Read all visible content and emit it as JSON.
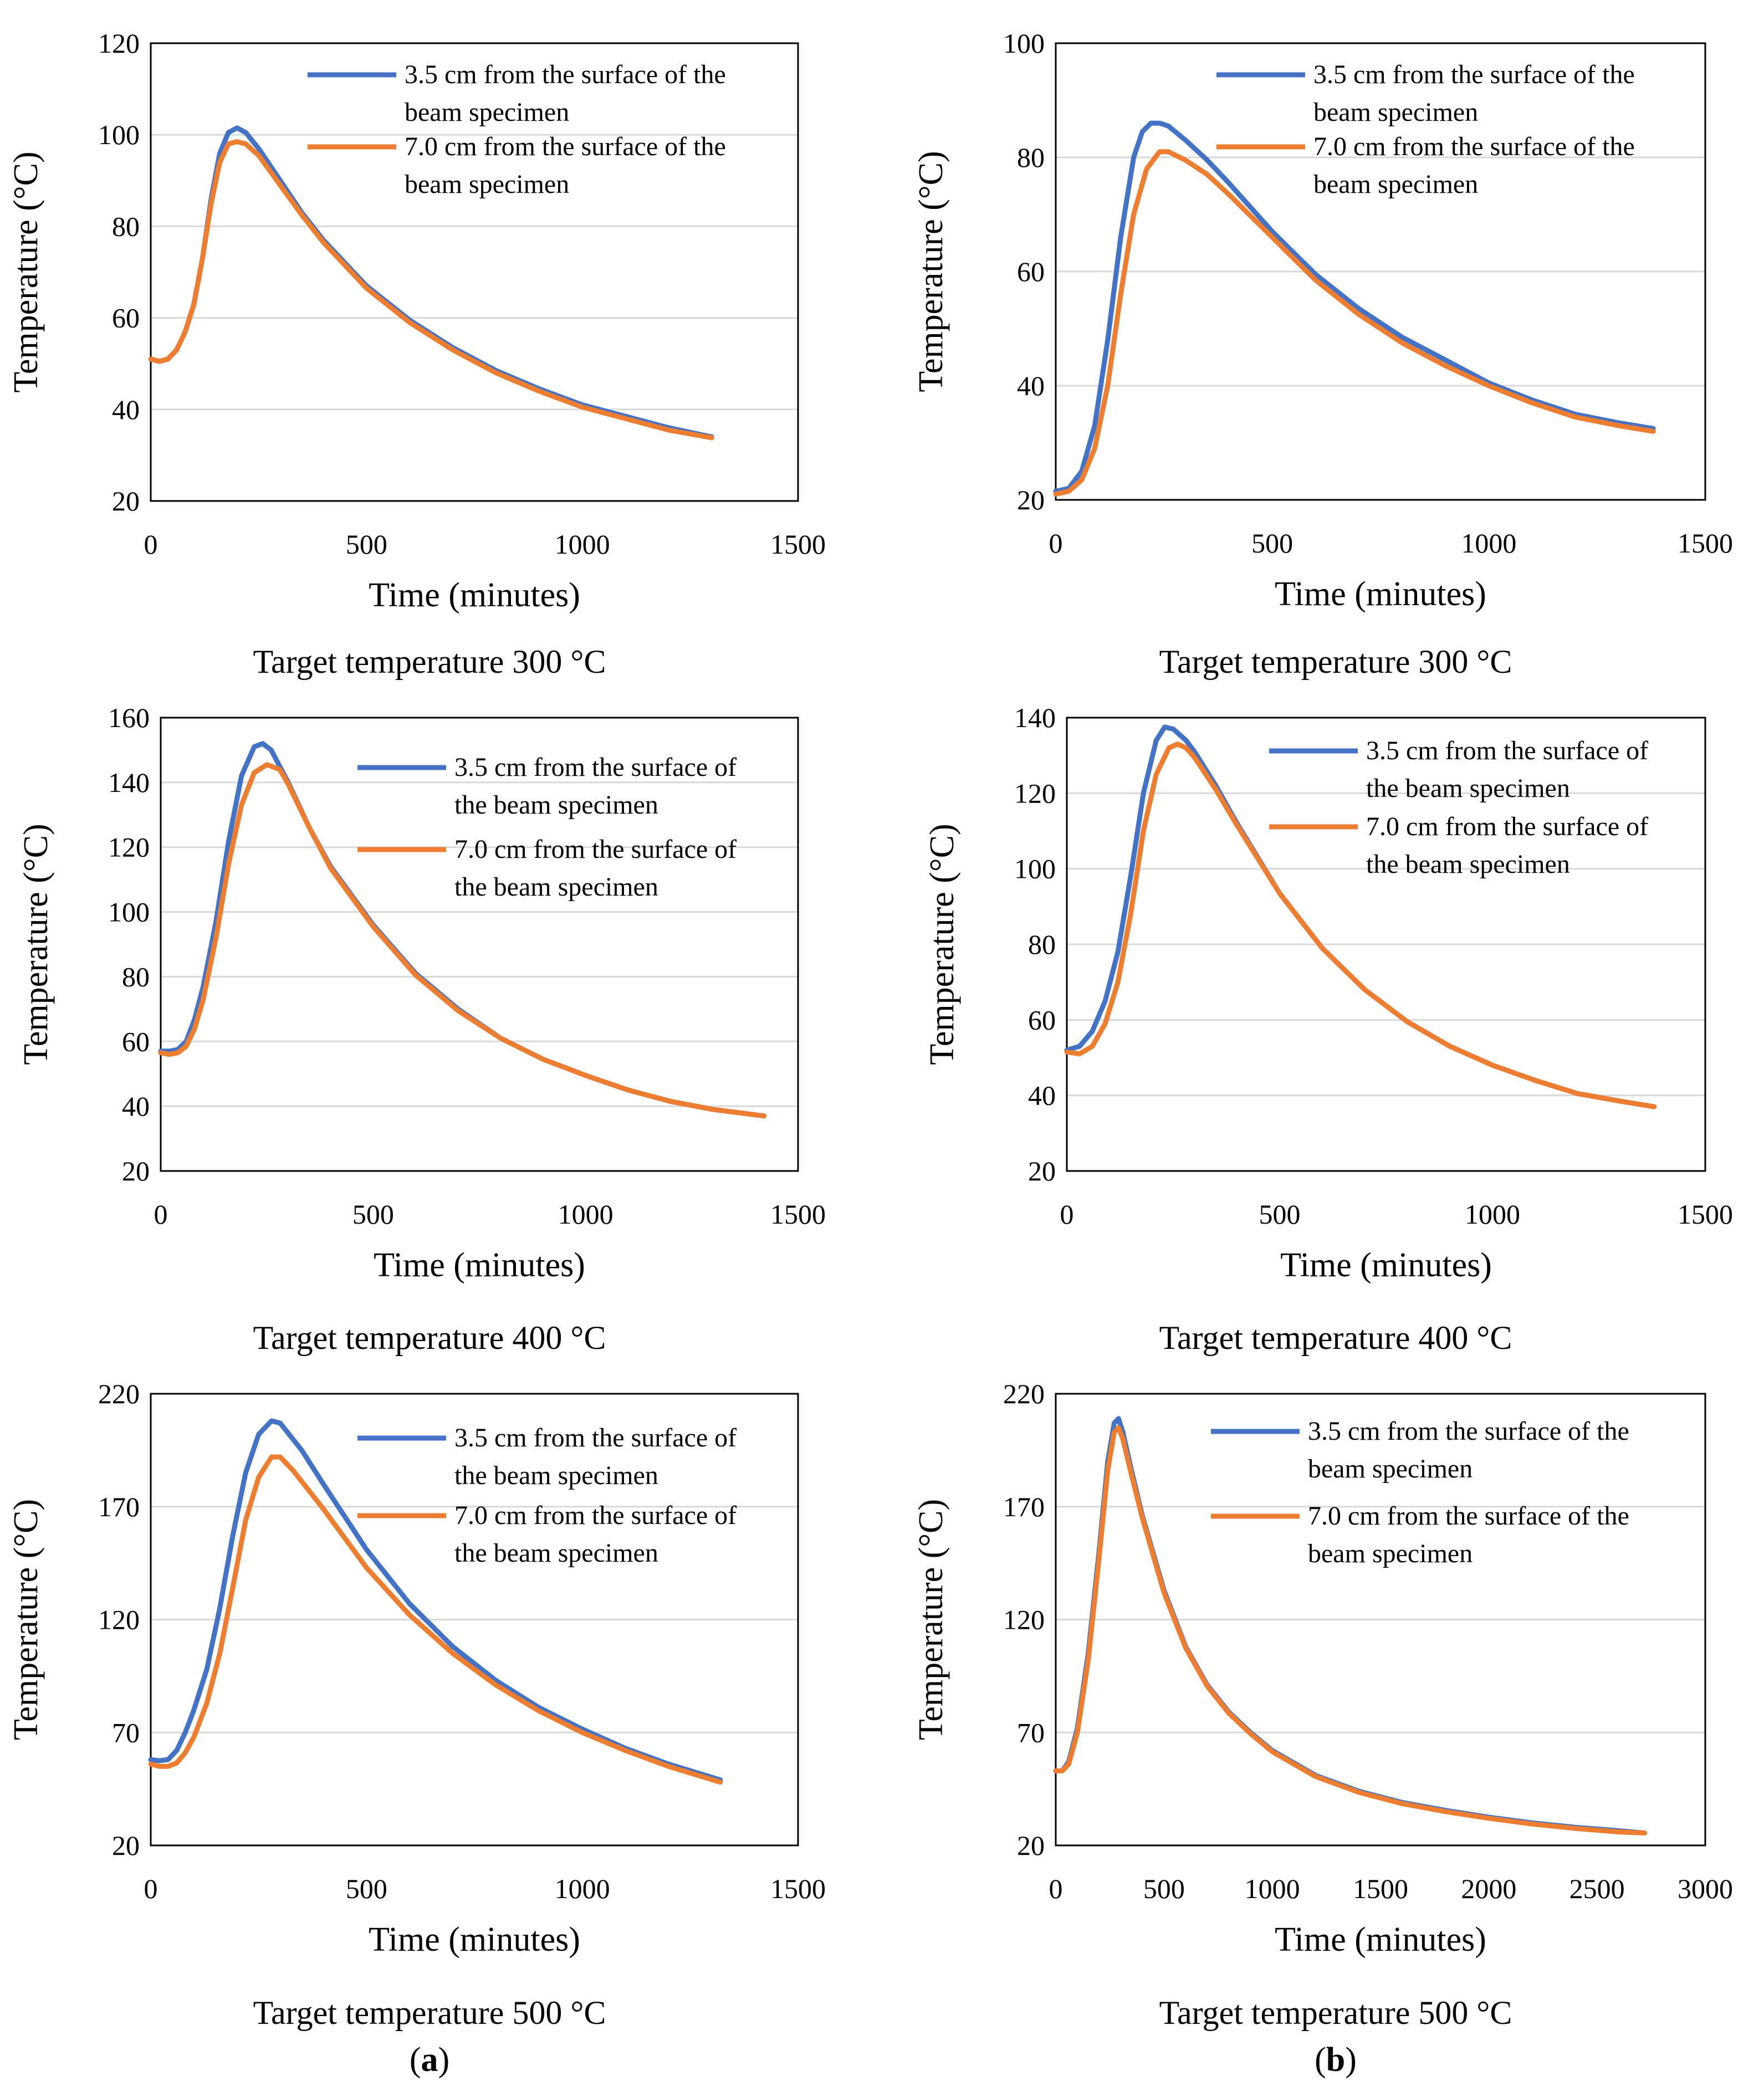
{
  "chart_data": [
    {
      "type": "line",
      "panel": "a",
      "caption": "Target temperature 300 °C",
      "xlabel": "Time (minutes)",
      "ylabel": "Temperature (°C)",
      "xlim": [
        0,
        1500
      ],
      "ylim": [
        20,
        120
      ],
      "xticks": [
        0,
        500,
        1000,
        1500
      ],
      "yticks": [
        20,
        40,
        60,
        80,
        100,
        120
      ],
      "legend": "top-right",
      "grid": "horizontal",
      "series": [
        {
          "name": "3.5 cm from the surface of the beam specimen",
          "label_lines": [
            "3.5 cm from the surface of the",
            "beam specimen"
          ],
          "color": "#4472C4",
          "x": [
            0,
            20,
            40,
            60,
            80,
            100,
            120,
            140,
            160,
            180,
            200,
            220,
            250,
            300,
            350,
            400,
            500,
            600,
            700,
            800,
            900,
            1000,
            1100,
            1200,
            1300
          ],
          "y": [
            51,
            50.5,
            51,
            53,
            57,
            63,
            73,
            86,
            96,
            100.5,
            101.5,
            100.5,
            97,
            90,
            83,
            77,
            67,
            59.5,
            53.5,
            48.5,
            44.5,
            41,
            38.5,
            36,
            34
          ]
        },
        {
          "name": "7.0 cm from the surface of the beam specimen",
          "label_lines": [
            "7.0 cm from the surface of the",
            "beam specimen"
          ],
          "color": "#ED7D31",
          "x": [
            0,
            20,
            40,
            60,
            80,
            100,
            120,
            140,
            160,
            180,
            200,
            220,
            250,
            300,
            350,
            400,
            500,
            600,
            700,
            800,
            900,
            1000,
            1100,
            1200,
            1300
          ],
          "y": [
            51,
            50.5,
            51,
            53,
            57,
            63,
            73,
            85,
            94,
            98,
            98.5,
            98,
            95.5,
            89,
            82.5,
            76.5,
            66.5,
            59,
            53,
            48,
            44,
            40.5,
            38,
            35.5,
            33.8
          ]
        }
      ]
    },
    {
      "type": "line",
      "panel": "b",
      "caption": "Target temperature 300 °C",
      "xlabel": "Time (minutes)",
      "ylabel": "Temperature (°C)",
      "xlim": [
        0,
        1500
      ],
      "ylim": [
        20,
        100
      ],
      "xticks": [
        0,
        500,
        1000,
        1500
      ],
      "yticks": [
        20,
        40,
        60,
        80,
        100
      ],
      "legend": "top-right",
      "grid": "horizontal",
      "series": [
        {
          "name": "3.5 cm from the surface of the beam specimen",
          "label_lines": [
            "3.5 cm from the surface of the",
            "beam specimen"
          ],
          "color": "#4472C4",
          "x": [
            0,
            30,
            60,
            90,
            120,
            150,
            180,
            200,
            220,
            240,
            260,
            300,
            350,
            400,
            500,
            600,
            700,
            800,
            900,
            1000,
            1100,
            1200,
            1300,
            1380
          ],
          "y": [
            21.5,
            22,
            25,
            33,
            48,
            66,
            80,
            84.5,
            86,
            86,
            85.5,
            83,
            79.5,
            75.5,
            67,
            59.5,
            53.5,
            48.5,
            44.5,
            40.5,
            37.5,
            35,
            33.5,
            32.5
          ]
        },
        {
          "name": "7.0 cm from the surface of the beam specimen",
          "label_lines": [
            "7.0 cm from the surface of the",
            "beam specimen"
          ],
          "color": "#ED7D31",
          "x": [
            0,
            30,
            60,
            90,
            120,
            150,
            180,
            210,
            240,
            260,
            300,
            350,
            400,
            500,
            600,
            700,
            800,
            900,
            1000,
            1100,
            1200,
            1300,
            1380
          ],
          "y": [
            21,
            21.5,
            23.5,
            29,
            40,
            56,
            70,
            78,
            81,
            81,
            79.5,
            77,
            73.5,
            66,
            58.5,
            52.5,
            47.5,
            43.5,
            40,
            37,
            34.5,
            33,
            32
          ]
        }
      ]
    },
    {
      "type": "line",
      "panel": "a",
      "caption": "Target temperature 400 °C",
      "xlabel": "Time (minutes)",
      "ylabel": "Temperature (°C)",
      "xlim": [
        0,
        1500
      ],
      "ylim": [
        20,
        160
      ],
      "xticks": [
        0,
        500,
        1000,
        1500
      ],
      "yticks": [
        20,
        40,
        60,
        80,
        100,
        120,
        140,
        160
      ],
      "legend": "top-right",
      "grid": "horizontal",
      "series": [
        {
          "name": "3.5 cm from the surface of the beam specimen",
          "label_lines": [
            "3.5 cm from the surface of",
            "the beam specimen"
          ],
          "color": "#4472C4",
          "x": [
            0,
            20,
            40,
            60,
            80,
            100,
            130,
            160,
            190,
            220,
            240,
            260,
            300,
            350,
            400,
            500,
            600,
            700,
            800,
            900,
            1000,
            1100,
            1200,
            1300,
            1420
          ],
          "y": [
            57,
            57,
            57.5,
            60,
            67,
            77,
            97,
            122,
            142,
            151,
            152,
            150,
            140,
            126,
            114,
            96,
            81,
            70,
            61,
            54.5,
            49.5,
            45,
            41.5,
            39,
            37
          ]
        },
        {
          "name": "7.0 cm from the surface of the beam specimen",
          "label_lines": [
            "7.0 cm from the surface of",
            "the beam specimen"
          ],
          "color": "#ED7D31",
          "x": [
            0,
            20,
            40,
            60,
            80,
            100,
            130,
            160,
            190,
            220,
            250,
            280,
            300,
            350,
            400,
            500,
            600,
            700,
            800,
            900,
            1000,
            1100,
            1200,
            1300,
            1420
          ],
          "y": [
            56.5,
            56,
            56.5,
            58.5,
            64,
            73,
            92,
            115,
            133,
            143,
            145.5,
            144,
            139.5,
            126,
            113.5,
            95.5,
            80.5,
            69.5,
            61,
            54.5,
            49.5,
            45,
            41.5,
            39,
            37
          ]
        }
      ]
    },
    {
      "type": "line",
      "panel": "b",
      "caption": "Target temperature 400 °C",
      "xlabel": "Time (minutes)",
      "ylabel": "Temperature (°C)",
      "xlim": [
        0,
        1500
      ],
      "ylim": [
        20,
        140
      ],
      "xticks": [
        0,
        500,
        1000,
        1500
      ],
      "yticks": [
        20,
        40,
        60,
        80,
        100,
        120,
        140
      ],
      "legend": "top-right",
      "grid": "horizontal",
      "series": [
        {
          "name": "3.5 cm from the surface of the beam specimen",
          "label_lines": [
            "3.5 cm from the surface of",
            "the beam specimen"
          ],
          "color": "#4472C4",
          "x": [
            0,
            30,
            60,
            90,
            120,
            150,
            180,
            210,
            230,
            250,
            280,
            300,
            350,
            400,
            500,
            600,
            700,
            800,
            900,
            1000,
            1100,
            1200,
            1300,
            1380
          ],
          "y": [
            52,
            53,
            57,
            65,
            78,
            98,
            120,
            134,
            137.5,
            137,
            134,
            131,
            122,
            112,
            93.5,
            79,
            68,
            59.5,
            53,
            48,
            44,
            40.5,
            38.5,
            37
          ]
        },
        {
          "name": "7.0 cm from the surface of the beam specimen",
          "label_lines": [
            "7.0 cm from the surface of",
            "the beam specimen"
          ],
          "color": "#ED7D31",
          "x": [
            0,
            30,
            60,
            90,
            120,
            150,
            180,
            210,
            240,
            260,
            280,
            300,
            350,
            400,
            500,
            600,
            700,
            800,
            900,
            1000,
            1100,
            1200,
            1300,
            1380
          ],
          "y": [
            51.5,
            51,
            53,
            59,
            70,
            88,
            110,
            125,
            132,
            133,
            132,
            129.5,
            121,
            111.5,
            93.5,
            79,
            68,
            59.5,
            53,
            48,
            44,
            40.5,
            38.5,
            37
          ]
        }
      ]
    },
    {
      "type": "line",
      "panel": "a",
      "caption": "Target temperature 500 °C",
      "xlabel": "Time (minutes)",
      "ylabel": "Temperature (°C)",
      "xlim": [
        0,
        1500
      ],
      "ylim": [
        20,
        220
      ],
      "xticks": [
        0,
        500,
        1000,
        1500
      ],
      "yticks": [
        20,
        70,
        120,
        170,
        220
      ],
      "legend": "top-right",
      "grid": "horizontal",
      "series": [
        {
          "name": "3.5 cm from the surface of the beam specimen",
          "label_lines": [
            "3.5 cm from the surface of",
            "the beam specimen"
          ],
          "color": "#4472C4",
          "x": [
            0,
            20,
            40,
            60,
            80,
            100,
            130,
            160,
            190,
            220,
            250,
            280,
            300,
            350,
            400,
            500,
            600,
            700,
            800,
            900,
            1000,
            1100,
            1200,
            1320
          ],
          "y": [
            58,
            57.5,
            58,
            62,
            70,
            80,
            98,
            125,
            157,
            185,
            202,
            208,
            207,
            195,
            180,
            151,
            127,
            108,
            93,
            81,
            71.5,
            63,
            56,
            49
          ]
        },
        {
          "name": "7.0 cm from the surface of the beam specimen",
          "label_lines": [
            "7.0 cm from the surface of",
            "the beam specimen"
          ],
          "color": "#ED7D31",
          "x": [
            0,
            20,
            40,
            60,
            80,
            100,
            130,
            160,
            190,
            220,
            250,
            280,
            300,
            330,
            400,
            500,
            600,
            700,
            800,
            900,
            1000,
            1100,
            1200,
            1320
          ],
          "y": [
            56,
            55,
            55,
            56.5,
            61,
            68,
            83,
            105,
            134,
            164,
            183,
            192,
            192,
            186,
            169,
            143,
            122,
            105,
            91,
            79.5,
            70,
            62,
            55,
            48
          ]
        }
      ]
    },
    {
      "type": "line",
      "panel": "b",
      "caption": "Target temperature 500 °C",
      "xlabel": "Time (minutes)",
      "ylabel": "Temperature (°C)",
      "xlim": [
        0,
        3000
      ],
      "ylim": [
        20,
        220
      ],
      "xticks": [
        0,
        500,
        1000,
        1500,
        2000,
        2500,
        3000
      ],
      "yticks": [
        20,
        70,
        120,
        170,
        220
      ],
      "legend": "top-right",
      "grid": "horizontal",
      "series": [
        {
          "name": "3.5 cm from the surface of the beam specimen",
          "label_lines": [
            "3.5 cm from the surface of the",
            "beam specimen"
          ],
          "color": "#4472C4",
          "x": [
            0,
            30,
            60,
            100,
            150,
            200,
            240,
            270,
            290,
            310,
            350,
            400,
            500,
            600,
            700,
            800,
            900,
            1000,
            1200,
            1400,
            1600,
            1800,
            2000,
            2200,
            2400,
            2600,
            2720
          ],
          "y": [
            53,
            53,
            57,
            72,
            105,
            150,
            190,
            207,
            209,
            203,
            186,
            166,
            133,
            108,
            91,
            79,
            70,
            62,
            51,
            44,
            39,
            35.5,
            32.5,
            30,
            28,
            26.5,
            25.5
          ]
        },
        {
          "name": "7.0 cm from the surface of the beam specimen",
          "label_lines": [
            "7.0 cm from the surface of the",
            "beam specimen"
          ],
          "color": "#ED7D31",
          "x": [
            0,
            30,
            60,
            100,
            150,
            200,
            240,
            270,
            290,
            310,
            350,
            400,
            500,
            600,
            700,
            800,
            900,
            1000,
            1200,
            1400,
            1600,
            1800,
            2000,
            2200,
            2400,
            2600,
            2720
          ],
          "y": [
            53,
            53,
            56,
            70,
            102,
            147,
            186,
            203,
            205,
            200,
            184,
            165,
            132,
            107.5,
            90.5,
            78.5,
            69.5,
            61.5,
            50.5,
            43.5,
            38.5,
            35,
            32,
            29.5,
            27.5,
            26,
            25.5
          ]
        }
      ]
    }
  ],
  "panel_labels": {
    "a": {
      "open": "(",
      "letter": "a",
      "close": ")"
    },
    "b": {
      "open": "(",
      "letter": "b",
      "close": ")"
    }
  }
}
